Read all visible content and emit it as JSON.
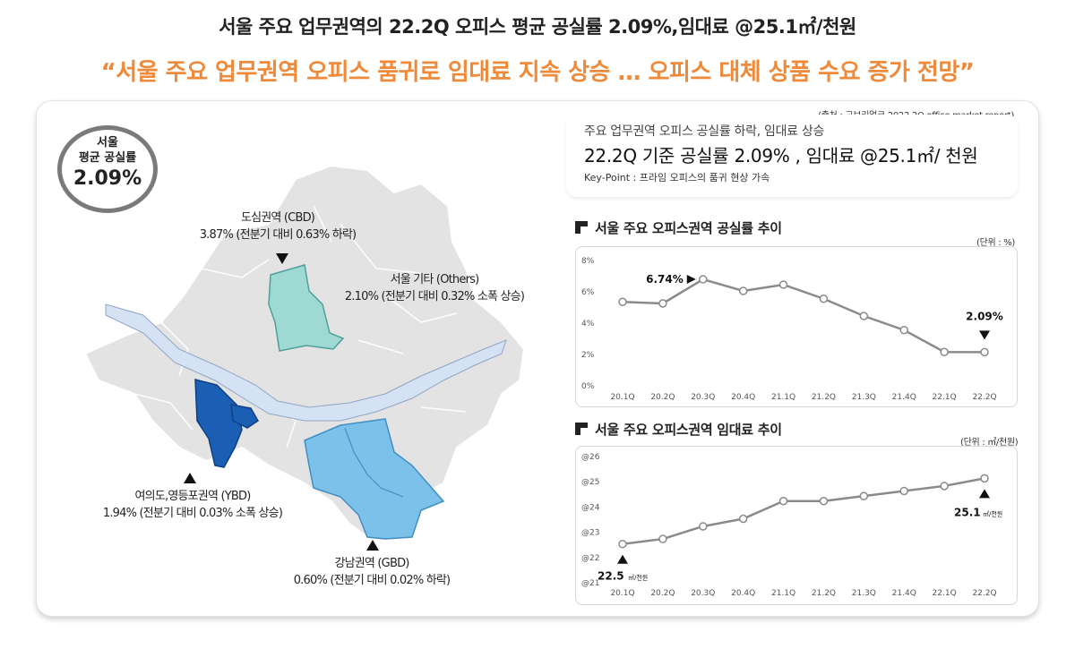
{
  "header": {
    "title": "서울 주요 업무권역의 22.2Q 오피스 평균 공실률 2.09%,임대료 @25.1㎡/천원",
    "headline": "“서울 주요 업무권역 오피스 품귀로 임대료 지속 상승 … 오피스 대체 상품 수요 증가 전망”"
  },
  "source": "(출처 : 교보리얼코 2022.2Q office market report)",
  "summary": {
    "subtitle": "주요 업무권역 오피스 공실률 하락, 임대료 상승",
    "main": "22.2Q 기준 공실률 2.09% , 임대료 @25.1㎡/ 천원",
    "keypoint": "Key-Point : 프라임 오피스의 품귀 현상 가속"
  },
  "badge": {
    "line1": "서울",
    "line2": "평균 공실률",
    "value": "2.09%"
  },
  "regions": [
    {
      "id": "cbd",
      "name": "도심권역 (CBD)",
      "detail": "3.87% (전분기 대비 0.63% 하락)",
      "color": "#9fd9d3"
    },
    {
      "id": "others",
      "name": "서울 기타 (Others)",
      "detail": "2.10% (전분기 대비 0.32% 소폭 상승)",
      "color": "#e3e3e3"
    },
    {
      "id": "ybd",
      "name": "여의도,영등포권역 (YBD)",
      "detail": "1.94% (전분기 대비 0.03% 소폭 상승)",
      "color": "#1a5fb4"
    },
    {
      "id": "gbd",
      "name": "강남권역 (GBD)",
      "detail": "0.60% (전분기 대비 0.02% 하락)",
      "color": "#7cc1ea"
    }
  ],
  "colors": {
    "accent_orange": "#ef8a3a",
    "river": "#d5e2f3",
    "line": "#8a8a8a"
  },
  "chart_data": [
    {
      "type": "line",
      "title": "서울 주요 오피스권역 공실률 추이",
      "unit": "(단위 : %)",
      "categories": [
        "20.1Q",
        "20.2Q",
        "20.3Q",
        "20.4Q",
        "21.1Q",
        "21.2Q",
        "21.3Q",
        "21.4Q",
        "22.1Q",
        "22.2Q"
      ],
      "values": [
        5.3,
        5.2,
        6.74,
        6.0,
        6.4,
        5.5,
        4.4,
        3.5,
        2.1,
        2.09
      ],
      "ylim": [
        0,
        8
      ],
      "yticks": [
        "0%",
        "2%",
        "4%",
        "6%",
        "8%"
      ],
      "annotations": {
        "high": "6.74%",
        "last": "2.09%"
      },
      "grid": false
    },
    {
      "type": "line",
      "title": "서울 주요 오피스권역 임대료 추이",
      "unit": "(단위 : ㎡/천원)",
      "categories": [
        "20.1Q",
        "20.2Q",
        "20.3Q",
        "20.4Q",
        "21.1Q",
        "21.2Q",
        "21.3Q",
        "21.4Q",
        "22.1Q",
        "22.2Q"
      ],
      "values": [
        22.5,
        22.7,
        23.2,
        23.5,
        24.2,
        24.2,
        24.4,
        24.6,
        24.8,
        25.1
      ],
      "ylim": [
        21,
        26
      ],
      "yticks": [
        "@21",
        "@22",
        "@23",
        "@24",
        "@25",
        "@26"
      ],
      "annotations": {
        "first_value": "22.5",
        "first_unit": "㎡/천원",
        "last_value": "25.1",
        "last_unit": "㎡/천원"
      },
      "grid": false
    }
  ]
}
